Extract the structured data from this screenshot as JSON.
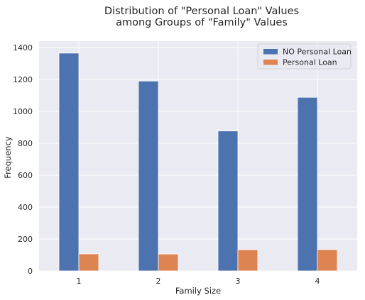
{
  "chart_data": {
    "type": "bar",
    "title_lines": [
      "Distribution of \"Personal Loan\" Values",
      "among Groups of \"Family\" Values"
    ],
    "xlabel": "Family Size",
    "ylabel": "Frequency",
    "categories": [
      "1",
      "2",
      "3",
      "4"
    ],
    "series": [
      {
        "name": "NO Personal Loan",
        "color": "#4c72b0",
        "values": [
          1365,
          1190,
          877,
          1088
        ]
      },
      {
        "name": "Personal Loan",
        "color": "#dd8452",
        "values": [
          107,
          106,
          133,
          134
        ]
      }
    ],
    "ylim": [
      0,
      1440
    ],
    "yticks": [
      0,
      200,
      400,
      600,
      800,
      1000,
      1200,
      1400
    ],
    "grid": true,
    "legend_position": "top-right",
    "background_color": "#eaeaf2"
  }
}
